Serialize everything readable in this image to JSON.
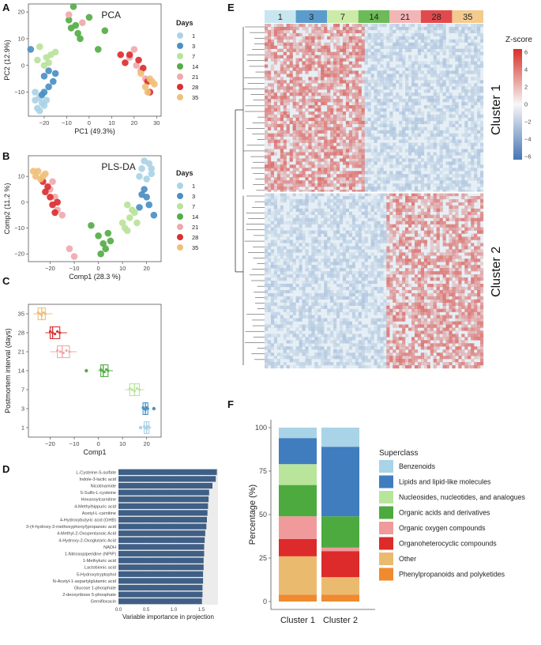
{
  "panel_letters": [
    "A",
    "B",
    "C",
    "D",
    "E",
    "F"
  ],
  "day_colors": {
    "1": "#aad3e6",
    "3": "#4b8fc4",
    "7": "#b8e39a",
    "14": "#55ad47",
    "21": "#f0a9ac",
    "28": "#db2f31",
    "35": "#f0c07a"
  },
  "chart_data": [
    {
      "id": "A",
      "type": "scatter",
      "title": "PCA",
      "xlabel": "PC1 (49.3%)",
      "ylabel": "PC2 (12.9%)",
      "xlim": [
        -27,
        32
      ],
      "ylim": [
        -19,
        23
      ],
      "xticks": [
        -20,
        -10,
        0,
        10,
        20,
        30
      ],
      "yticks": [
        -10,
        0,
        10,
        20
      ],
      "legend_title": "Days",
      "series": [
        {
          "name": "1",
          "points": [
            [
              -24,
              -10
            ],
            [
              -22,
              -12
            ],
            [
              -21,
              -14
            ],
            [
              -23,
              -16
            ],
            [
              -20,
              -15
            ],
            [
              -19,
              -13
            ],
            [
              -22,
              -17
            ],
            [
              -24,
              -13
            ]
          ]
        },
        {
          "name": "3",
          "points": [
            [
              -26,
              6
            ],
            [
              -20,
              -4
            ],
            [
              -18,
              -2
            ],
            [
              -16,
              -6
            ],
            [
              -15,
              -3
            ],
            [
              -18,
              -8
            ],
            [
              -20,
              -10
            ],
            [
              -21,
              -11
            ]
          ]
        },
        {
          "name": "7",
          "points": [
            [
              -22,
              7
            ],
            [
              -19,
              3
            ],
            [
              -17,
              4
            ],
            [
              -15,
              5
            ],
            [
              -20,
              0
            ],
            [
              -23,
              2
            ],
            [
              -18,
              1
            ]
          ]
        },
        {
          "name": "14",
          "points": [
            [
              -7,
              22
            ],
            [
              -6,
              15
            ],
            [
              -5,
              12
            ],
            [
              -9,
              17
            ],
            [
              0,
              18
            ],
            [
              7,
              13
            ],
            [
              4,
              6
            ],
            [
              -4,
              10
            ],
            [
              -8,
              14
            ]
          ]
        },
        {
          "name": "21",
          "points": [
            [
              -9,
              19
            ],
            [
              -3,
              16
            ],
            [
              20,
              6
            ],
            [
              23,
              -2
            ],
            [
              25,
              -5
            ],
            [
              21,
              0
            ],
            [
              18,
              3
            ]
          ]
        },
        {
          "name": "28",
          "points": [
            [
              14,
              4
            ],
            [
              16,
              1
            ],
            [
              18,
              4
            ],
            [
              22,
              2
            ],
            [
              26,
              -6
            ],
            [
              27,
              -10
            ],
            [
              24,
              -1
            ]
          ]
        },
        {
          "name": "35",
          "points": [
            [
              23,
              -3
            ],
            [
              25,
              -8
            ],
            [
              28,
              -6
            ],
            [
              26,
              -10
            ],
            [
              29,
              -7
            ],
            [
              27,
              -5
            ]
          ]
        }
      ]
    },
    {
      "id": "B",
      "type": "scatter",
      "title": "PLS-DA",
      "xlabel": "Comp1 (28.3 %)",
      "ylabel": "Comp2 (11.2 %)",
      "xlim": [
        -29,
        26
      ],
      "ylim": [
        -23,
        18
      ],
      "xticks": [
        -20,
        -10,
        0,
        10,
        20
      ],
      "yticks": [
        -20,
        -10,
        0,
        10
      ],
      "legend_title": "Days",
      "series": [
        {
          "name": "1",
          "points": [
            [
              19,
              16
            ],
            [
              21,
              15
            ],
            [
              22,
              11
            ],
            [
              18,
              13
            ],
            [
              17,
              10
            ],
            [
              20,
              9
            ],
            [
              22,
              13
            ]
          ]
        },
        {
          "name": "3",
          "points": [
            [
              19,
              5
            ],
            [
              20,
              2
            ],
            [
              21,
              -1
            ],
            [
              18,
              3
            ],
            [
              23,
              -5
            ],
            [
              17,
              -2
            ]
          ]
        },
        {
          "name": "7",
          "points": [
            [
              12,
              -1
            ],
            [
              14,
              -3
            ],
            [
              13,
              -6
            ],
            [
              16,
              -8
            ],
            [
              11,
              -10
            ],
            [
              10,
              -8
            ],
            [
              15,
              -4
            ],
            [
              12,
              -11
            ]
          ]
        },
        {
          "name": "14",
          "points": [
            [
              -3,
              -9
            ],
            [
              0,
              -13
            ],
            [
              2,
              -16
            ],
            [
              3,
              -18
            ],
            [
              4,
              -12
            ],
            [
              1,
              -20
            ],
            [
              5,
              -15
            ]
          ]
        },
        {
          "name": "21",
          "points": [
            [
              -20,
              5
            ],
            [
              -18,
              2
            ],
            [
              -17,
              -3
            ],
            [
              -15,
              -5
            ],
            [
              -12,
              -18
            ],
            [
              -10,
              -21
            ],
            [
              -19,
              8
            ]
          ]
        },
        {
          "name": "28",
          "points": [
            [
              -23,
              8
            ],
            [
              -22,
              4
            ],
            [
              -20,
              2
            ],
            [
              -19,
              -1
            ],
            [
              -18,
              -4
            ],
            [
              -17,
              0
            ],
            [
              -21,
              6
            ]
          ]
        },
        {
          "name": "35",
          "points": [
            [
              -27,
              12
            ],
            [
              -26,
              10
            ],
            [
              -24,
              9
            ],
            [
              -22,
              11
            ],
            [
              -25,
              12
            ],
            [
              -23,
              10
            ]
          ]
        }
      ]
    },
    {
      "id": "C",
      "type": "boxplot",
      "xlabel": "Comp1",
      "ylabel": "Postmortem interval (days)",
      "xlim": [
        -29,
        26
      ],
      "xticks": [
        -20,
        -10,
        0,
        10,
        20
      ],
      "categories": [
        "35",
        "28",
        "21",
        "14",
        "7",
        "3",
        "1"
      ],
      "boxes": [
        {
          "day": "35",
          "min": -27,
          "q1": -25,
          "median": -23.5,
          "q3": -22,
          "max": -19,
          "outliers": []
        },
        {
          "day": "28",
          "min": -22,
          "q1": -20,
          "median": -19,
          "q3": -16,
          "max": -13,
          "outliers": []
        },
        {
          "day": "21",
          "min": -20,
          "q1": -17,
          "median": -15,
          "q3": -12,
          "max": -9,
          "outliers": []
        },
        {
          "day": "14",
          "min": 0,
          "q1": 1,
          "median": 2,
          "q3": 4,
          "max": 6,
          "outliers": [
            -5
          ]
        },
        {
          "day": "7",
          "min": 11,
          "q1": 13,
          "median": 15,
          "q3": 17,
          "max": 19,
          "outliers": []
        },
        {
          "day": "3",
          "min": 18,
          "q1": 18.5,
          "median": 19.5,
          "q3": 20.5,
          "max": 21,
          "outliers": [
            23
          ]
        },
        {
          "day": "1",
          "min": 18.5,
          "q1": 19,
          "median": 20,
          "q3": 21,
          "max": 22,
          "outliers": [
            17.5
          ]
        }
      ]
    },
    {
      "id": "D",
      "type": "bar",
      "orientation": "horizontal",
      "xlabel": "Variable importance in projection",
      "xlim": [
        0,
        1.8
      ],
      "xticks": [
        0.0,
        0.5,
        1.0,
        1.5
      ],
      "categories": [
        "L-Cysteine-S-sulfate",
        "Indole-3-lactic acid",
        "Nicotinamide",
        "S-Sulfo-L-cysteine",
        "Hexanoylcarnitine",
        "4-Methylhippuric acid",
        "Acetyl-L-carnitine",
        "4-Hydroxybutyric acid (GHB)",
        "3-(4-hydroxy-3-methoxyphenyl)propanoic acid",
        "4-Methyl-2-Oxopentanoic Acid",
        "4-Hydroxy-2-Oxoglutaric Acid",
        "NADH",
        "1-Nitrosopiperidine (NPIP)",
        "1-Methyluric acid",
        "Lactobionic acid",
        "5-Hydroxytryptophol",
        "N-Acetyl-1-aspartylglutamic acid",
        "Glucose 1-phosphate",
        "2-deoxyribose 5-phosphate",
        "Gemifloxacin"
      ],
      "values": [
        1.78,
        1.76,
        1.7,
        1.64,
        1.63,
        1.62,
        1.61,
        1.6,
        1.59,
        1.57,
        1.56,
        1.55,
        1.55,
        1.54,
        1.54,
        1.53,
        1.53,
        1.52,
        1.52,
        1.51
      ]
    },
    {
      "id": "E",
      "type": "heatmap",
      "columns": [
        "1",
        "3",
        "7",
        "14",
        "21",
        "28",
        "35"
      ],
      "column_colors": [
        "#c8e6ef",
        "#5b9ccc",
        "#cceba8",
        "#6cba58",
        "#f4b5b7",
        "#e14a4d",
        "#f3cb8e"
      ],
      "legend_title": "Z-score",
      "colorbar_ticks": [
        6,
        4,
        2,
        0,
        -2,
        -4,
        -6
      ],
      "row_clusters": [
        "Cluster 1",
        "Cluster 2"
      ]
    },
    {
      "id": "F",
      "type": "stacked_bar",
      "ylabel": "Percentage (%)",
      "ylim": [
        0,
        100
      ],
      "yticks": [
        0,
        25,
        50,
        75,
        100
      ],
      "categories": [
        "Cluster 1",
        "Cluster 2"
      ],
      "legend_title": "Superclass",
      "series": [
        {
          "name": "Phenylpropanoids and polyketides",
          "color": "#ef8a2e",
          "values": [
            4,
            4
          ]
        },
        {
          "name": "Other",
          "color": "#eabb6e",
          "values": [
            22,
            10
          ]
        },
        {
          "name": "Organoheterocyclic compounds",
          "color": "#dd2a2a",
          "values": [
            10,
            15
          ]
        },
        {
          "name": "Organic oxygen compounds",
          "color": "#f19a9c",
          "values": [
            13,
            2
          ]
        },
        {
          "name": "Organic acids and derivatives",
          "color": "#4daa3f",
          "values": [
            18,
            18
          ]
        },
        {
          "name": "Nucleosides, nucleotides, and analogues",
          "color": "#b8e59a",
          "values": [
            12,
            0
          ]
        },
        {
          "name": "Lipids and lipid-like molecules",
          "color": "#3f7dbf",
          "values": [
            15,
            40
          ]
        },
        {
          "name": "Benzenoids",
          "color": "#a9d3e7",
          "values": [
            6,
            11
          ]
        }
      ]
    }
  ]
}
